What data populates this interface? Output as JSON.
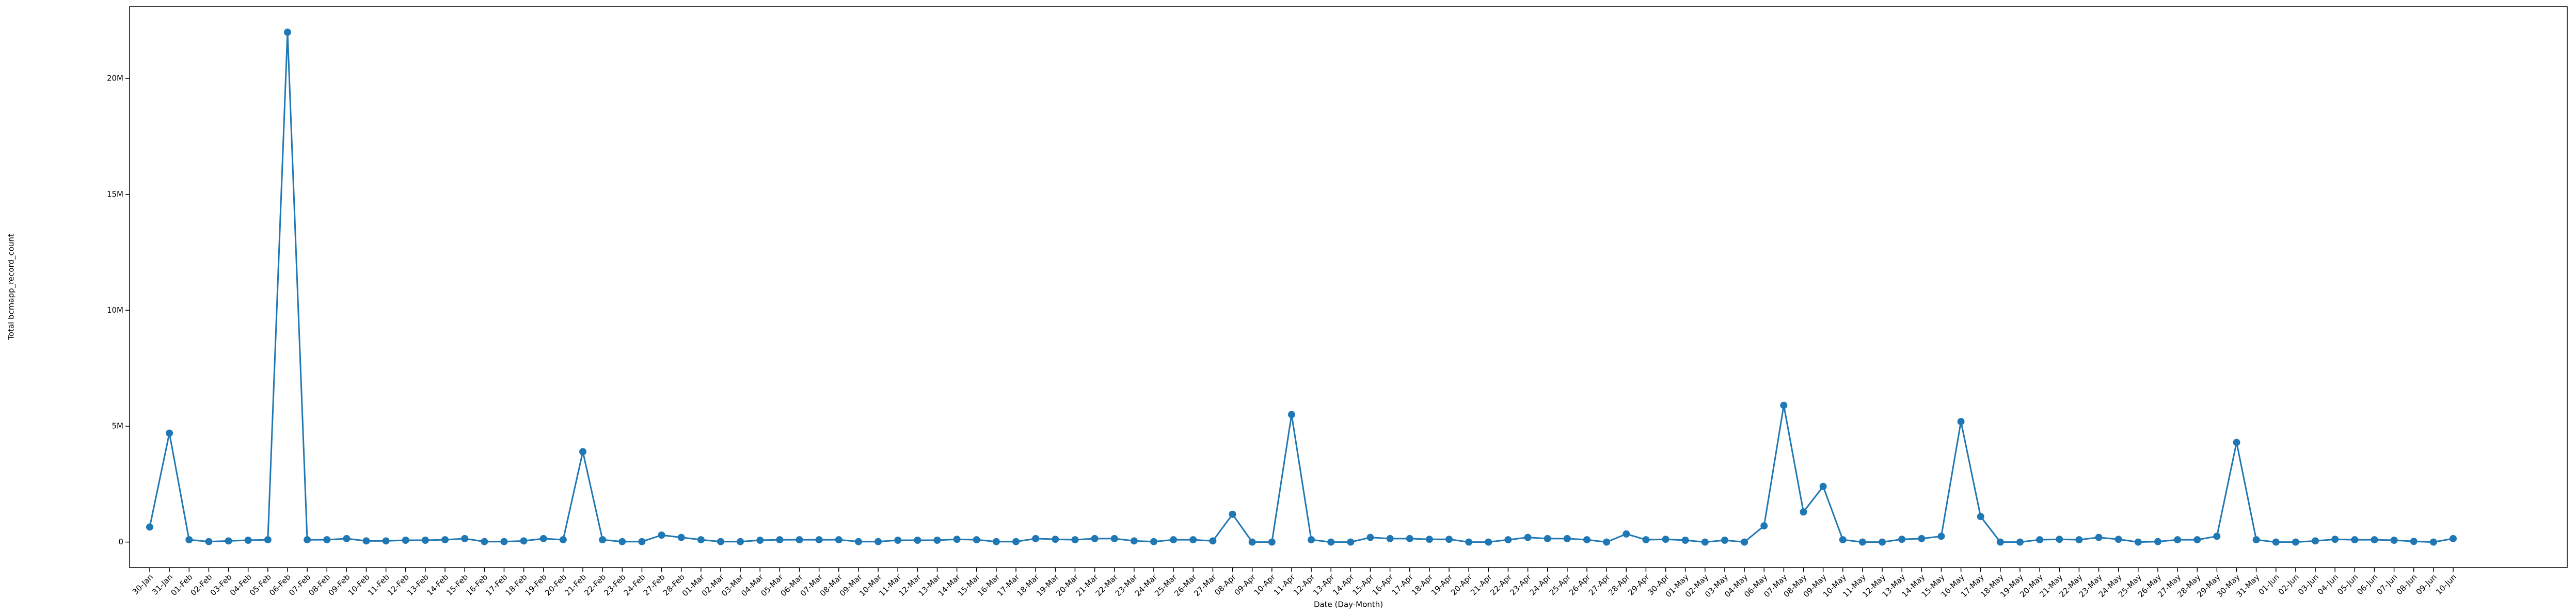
{
  "chart_data": {
    "type": "line",
    "x_label": "Date (Day-Month)",
    "y_label": "Total bcmapp_record_count",
    "categories": [
      "30-Jan",
      "31-Jan",
      "01-Feb",
      "02-Feb",
      "03-Feb",
      "04-Feb",
      "05-Feb",
      "06-Feb",
      "07-Feb",
      "08-Feb",
      "09-Feb",
      "10-Feb",
      "11-Feb",
      "12-Feb",
      "13-Feb",
      "14-Feb",
      "15-Feb",
      "16-Feb",
      "17-Feb",
      "18-Feb",
      "19-Feb",
      "20-Feb",
      "21-Feb",
      "22-Feb",
      "23-Feb",
      "24-Feb",
      "27-Feb",
      "28-Feb",
      "01-Mar",
      "02-Mar",
      "03-Mar",
      "04-Mar",
      "05-Mar",
      "06-Mar",
      "07-Mar",
      "08-Mar",
      "09-Mar",
      "10-Mar",
      "11-Mar",
      "12-Mar",
      "13-Mar",
      "14-Mar",
      "15-Mar",
      "16-Mar",
      "17-Mar",
      "18-Mar",
      "19-Mar",
      "20-Mar",
      "21-Mar",
      "22-Mar",
      "23-Mar",
      "24-Mar",
      "25-Mar",
      "26-Mar",
      "27-Mar",
      "08-Apr",
      "09-Apr",
      "10-Apr",
      "11-Apr",
      "12-Apr",
      "13-Apr",
      "14-Apr",
      "15-Apr",
      "16-Apr",
      "17-Apr",
      "18-Apr",
      "19-Apr",
      "20-Apr",
      "21-Apr",
      "22-Apr",
      "23-Apr",
      "24-Apr",
      "25-Apr",
      "26-Apr",
      "27-Apr",
      "28-Apr",
      "29-Apr",
      "30-Apr",
      "01-May",
      "02-May",
      "03-May",
      "04-May",
      "06-May",
      "07-May",
      "08-May",
      "09-May",
      "10-May",
      "11-May",
      "12-May",
      "13-May",
      "14-May",
      "15-May",
      "16-May",
      "17-May",
      "18-May",
      "19-May",
      "20-May",
      "21-May",
      "22-May",
      "23-May",
      "24-May",
      "25-May",
      "26-May",
      "27-May",
      "28-May",
      "29-May",
      "30-May",
      "31-May",
      "01-Jun",
      "02-Jun",
      "03-Jun",
      "04-Jun",
      "05-Jun",
      "06-Jun",
      "07-Jun",
      "08-Jun",
      "09-Jun",
      "10-Jun"
    ],
    "values": [
      650000,
      4700000,
      100000,
      20000,
      50000,
      80000,
      100000,
      22000000,
      100000,
      100000,
      150000,
      50000,
      50000,
      80000,
      80000,
      100000,
      150000,
      20000,
      20000,
      50000,
      150000,
      100000,
      3900000,
      100000,
      20000,
      20000,
      300000,
      200000,
      100000,
      20000,
      20000,
      80000,
      100000,
      100000,
      100000,
      100000,
      20000,
      20000,
      80000,
      80000,
      80000,
      120000,
      100000,
      20000,
      20000,
      150000,
      120000,
      100000,
      150000,
      150000,
      50000,
      20000,
      100000,
      100000,
      50000,
      1200000,
      0,
      0,
      5500000,
      100000,
      0,
      0,
      200000,
      150000,
      150000,
      120000,
      120000,
      0,
      0,
      100000,
      200000,
      150000,
      150000,
      100000,
      0,
      350000,
      100000,
      120000,
      80000,
      0,
      80000,
      0,
      700000,
      5900000,
      1300000,
      2400000,
      100000,
      0,
      0,
      120000,
      150000,
      250000,
      5200000,
      1100000,
      0,
      0,
      100000,
      120000,
      100000,
      200000,
      120000,
      0,
      20000,
      100000,
      100000,
      250000,
      4300000,
      100000,
      0,
      0,
      50000,
      120000,
      100000,
      100000,
      80000,
      30000,
      0,
      150000
    ],
    "color": "#1f77b4",
    "ylim": [
      -1100000,
      23100000
    ],
    "yticks": [
      0,
      {
        "value": 5000000,
        "label": "5M"
      },
      {
        "value": 10000000,
        "label": "10M"
      },
      {
        "value": 15000000,
        "label": "15M"
      },
      {
        "value": 20000000,
        "label": "20M"
      }
    ]
  }
}
